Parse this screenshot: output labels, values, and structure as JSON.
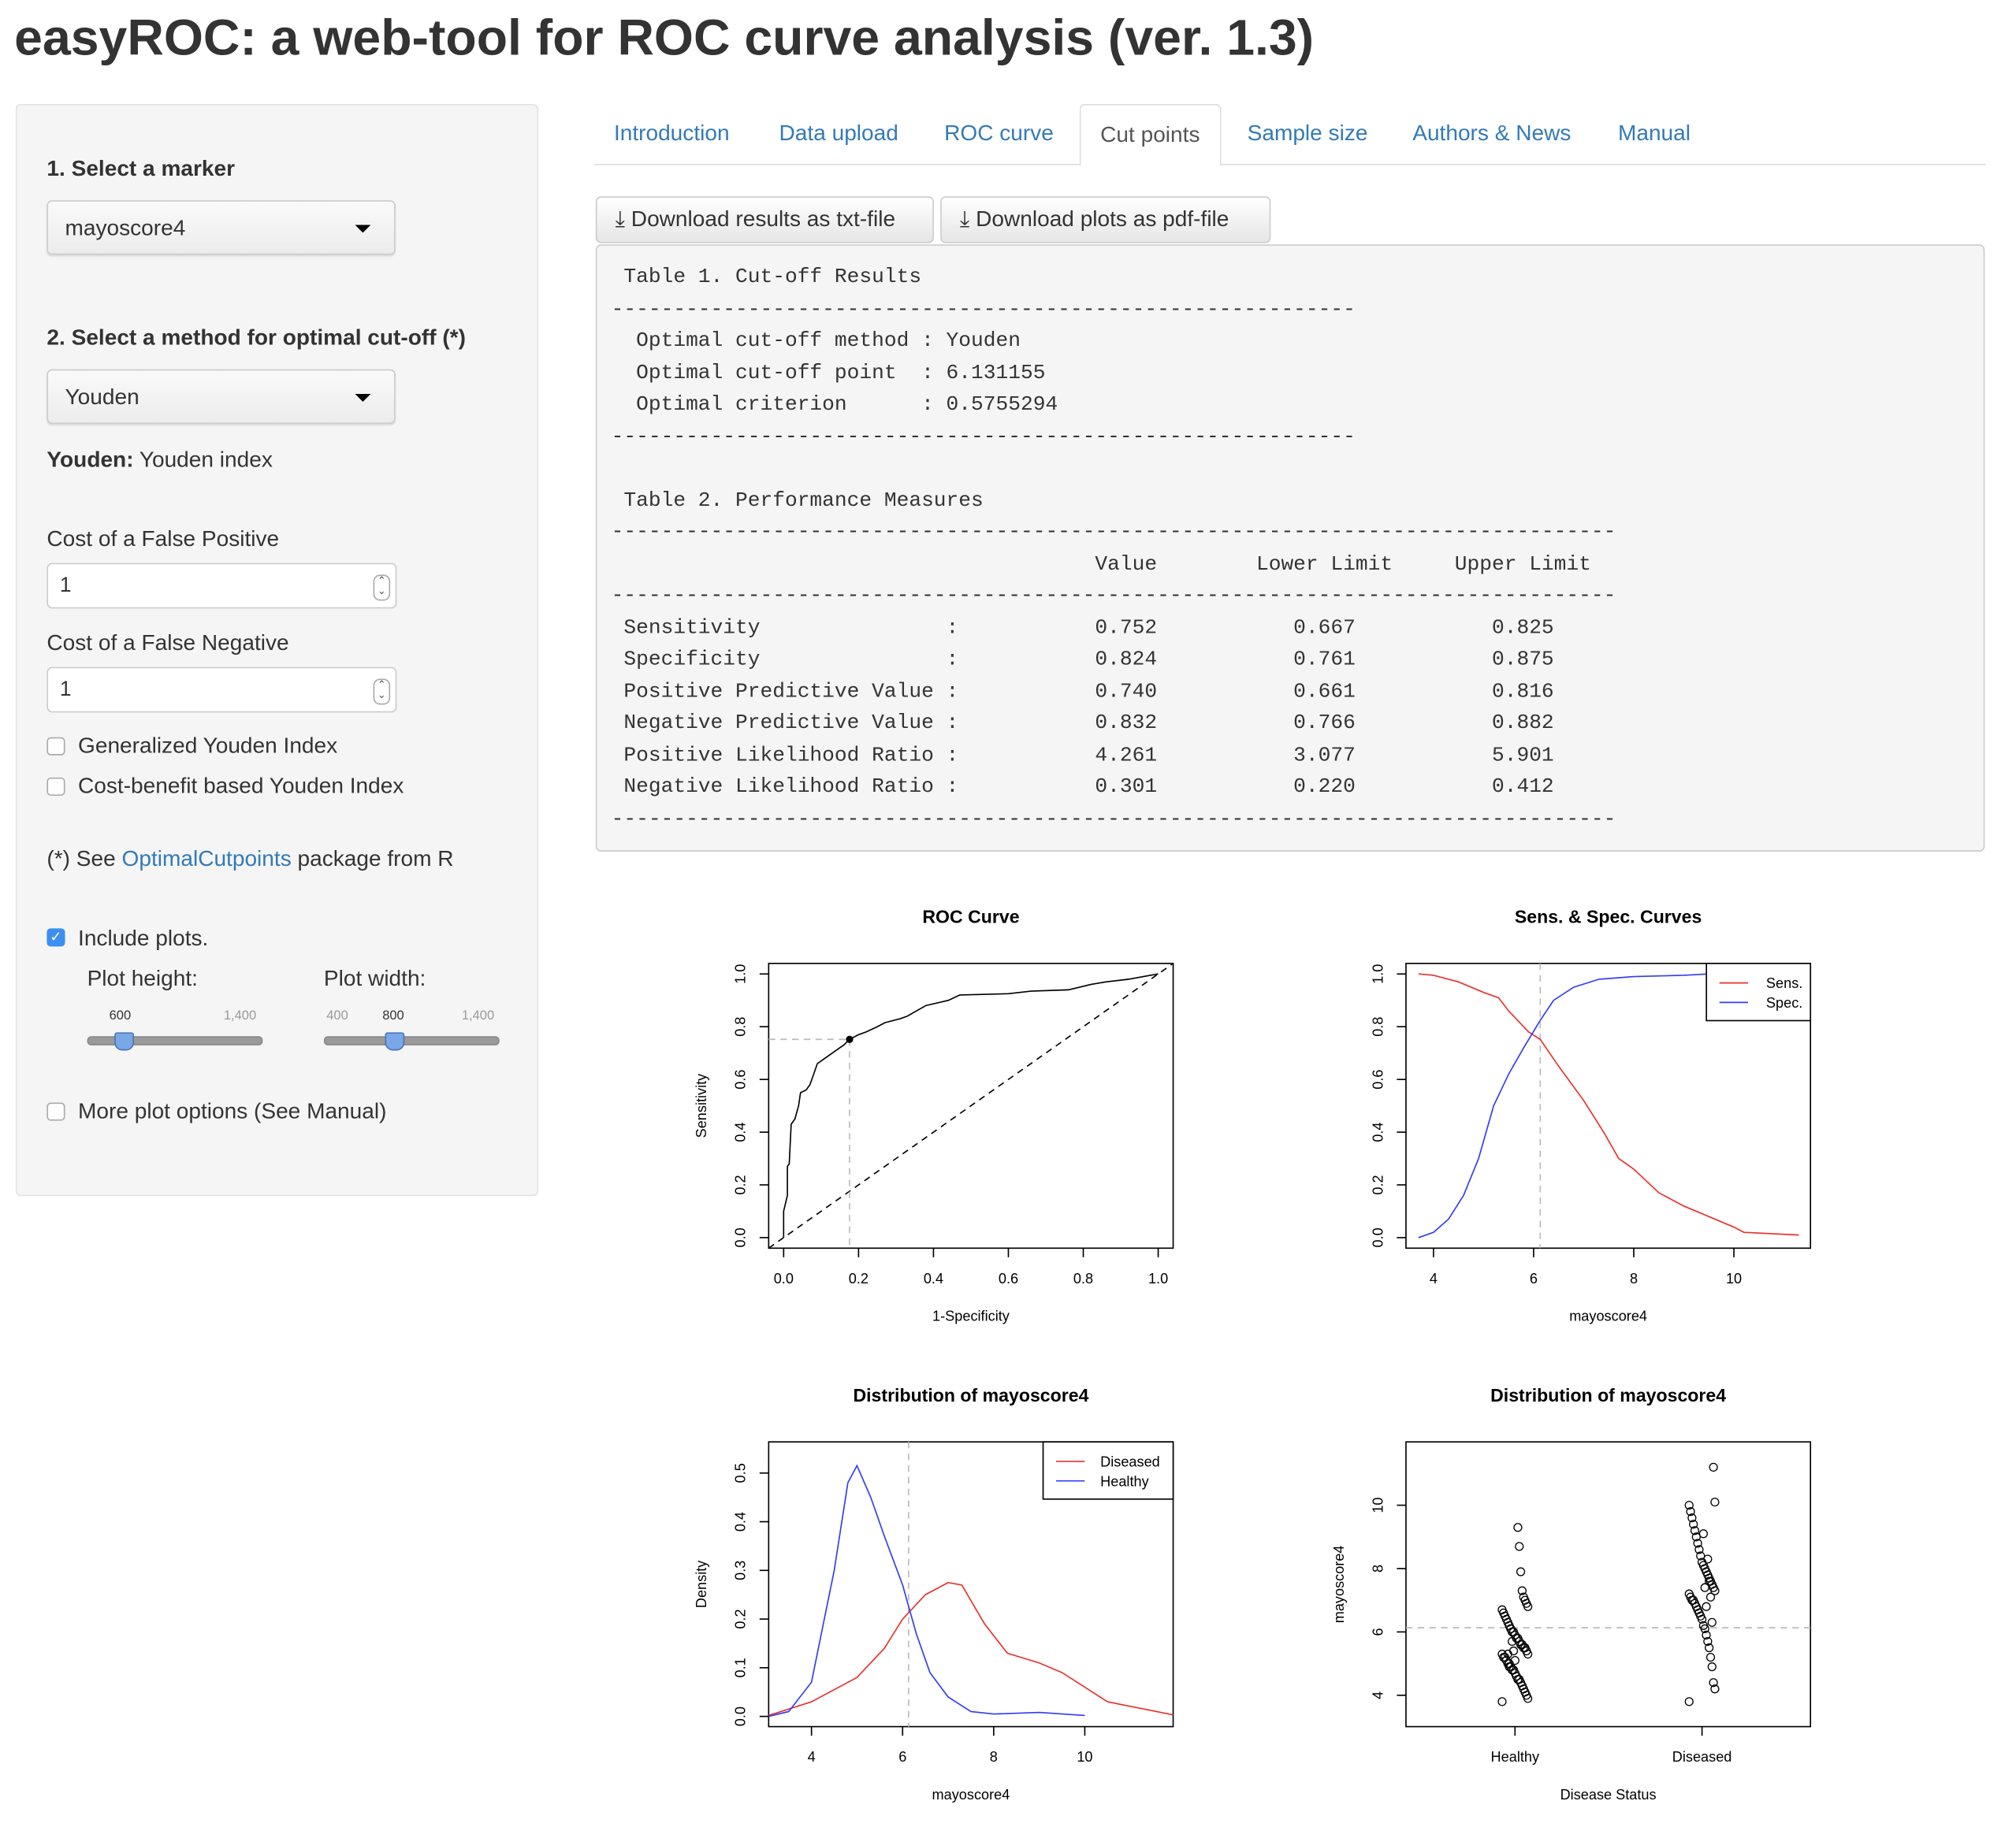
{
  "title": "easyROC: a web-tool for ROC curve analysis (ver. 1.3)",
  "sidebar": {
    "marker_label": "1. Select a marker",
    "marker_value": "mayoscore4",
    "method_label": "2. Select a method for optimal cut-off (*)",
    "method_value": "Youden",
    "method_desc_bold": "Youden:",
    "method_desc": " Youden index",
    "cost_fp_label": "Cost of a False Positive",
    "cost_fp_value": "1",
    "cost_fn_label": "Cost of a False Negative",
    "cost_fn_value": "1",
    "gen_youden": "Generalized Youden Index",
    "cost_youden": "Cost-benefit based Youden Index",
    "note_prefix": "(*) See ",
    "note_link": "OptimalCutpoints",
    "note_suffix": " package from R",
    "include_plots": "Include plots.",
    "plot_height_label": "Plot height:",
    "plot_width_label": "Plot width:",
    "height_value": "600",
    "height_max": "1,400",
    "width_min": "400",
    "width_value": "800",
    "width_max": "1,400",
    "more_options": "More plot options (See Manual)"
  },
  "tabs": [
    "Introduction",
    "Data upload",
    "ROC curve",
    "Cut points",
    "Sample size",
    "Authors & News",
    "Manual"
  ],
  "active_tab": "Cut points",
  "buttons": {
    "txt": "Download results as txt-file",
    "pdf": "Download plots as pdf-file"
  },
  "results": [
    " Table 1. Cut-off Results",
    "------------------------------------------------------------",
    "  Optimal cut-off method : Youden",
    "  Optimal cut-off point  : 6.131155",
    "  Optimal criterion      : 0.5755294",
    "------------------------------------------------------------",
    "",
    " Table 2. Performance Measures",
    "---------------------------------------------------------------------------------",
    "                                       Value        Lower Limit     Upper Limit",
    "---------------------------------------------------------------------------------",
    " Sensitivity               :           0.752           0.667           0.825",
    " Specificity               :           0.824           0.761           0.875",
    " Positive Predictive Value :           0.740           0.661           0.816",
    " Negative Predictive Value :           0.832           0.766           0.882",
    " Positive Likelihood Ratio :           4.261           3.077           5.901",
    " Negative Likelihood Ratio :           0.301           0.220           0.412",
    "---------------------------------------------------------------------------------"
  ],
  "chart_data": [
    {
      "type": "line",
      "title": "ROC Curve",
      "xlabel": "1-Specificity",
      "ylabel": "Sensitivity",
      "xlim": [
        -0.04,
        1.04
      ],
      "ylim": [
        -0.04,
        1.04
      ],
      "xticks": [
        "0.0",
        "0.2",
        "0.4",
        "0.6",
        "0.8",
        "1.0"
      ],
      "yticks": [
        "0.0",
        "0.2",
        "0.4",
        "0.6",
        "0.8",
        "1.0"
      ],
      "cutpoint": {
        "x": 0.176,
        "y": 0.752
      },
      "series": [
        {
          "name": "ROC",
          "color": "#000000",
          "x": [
            0,
            0,
            0.01,
            0.01,
            0.015,
            0.02,
            0.03,
            0.04,
            0.045,
            0.06,
            0.07,
            0.08,
            0.09,
            0.11,
            0.13,
            0.15,
            0.16,
            0.176,
            0.2,
            0.22,
            0.25,
            0.27,
            0.31,
            0.33,
            0.38,
            0.44,
            0.47,
            0.6,
            0.66,
            0.76,
            0.79,
            0.82,
            0.86,
            0.92,
            0.96,
            1
          ],
          "y": [
            0,
            0.1,
            0.16,
            0.27,
            0.28,
            0.43,
            0.45,
            0.5,
            0.55,
            0.56,
            0.58,
            0.62,
            0.66,
            0.68,
            0.7,
            0.72,
            0.73,
            0.752,
            0.77,
            0.78,
            0.8,
            0.815,
            0.83,
            0.84,
            0.88,
            0.9,
            0.92,
            0.925,
            0.935,
            0.94,
            0.95,
            0.96,
            0.97,
            0.98,
            0.99,
            1
          ]
        }
      ]
    },
    {
      "type": "line",
      "title": "Sens. & Spec. Curves",
      "xlabel": "mayoscore4",
      "ylabel": "",
      "xlim": [
        3.45,
        11.53
      ],
      "ylim": [
        -0.04,
        1.04
      ],
      "xticks": [
        "4",
        "6",
        "8",
        "10"
      ],
      "yticks": [
        "0.0",
        "0.2",
        "0.4",
        "0.6",
        "0.8",
        "1.0"
      ],
      "cutoff": 6.131155,
      "legend": "top-right",
      "series": [
        {
          "name": "Sens.",
          "color": "#e8322b",
          "x": [
            3.7,
            4,
            4.5,
            5,
            5.3,
            5.5,
            5.9,
            6.13,
            6.5,
            7,
            7.4,
            7.7,
            8,
            8.5,
            9,
            9.5,
            10,
            10.2,
            11.3
          ],
          "y": [
            1,
            0.995,
            0.97,
            0.93,
            0.91,
            0.86,
            0.78,
            0.752,
            0.65,
            0.52,
            0.4,
            0.3,
            0.26,
            0.17,
            0.12,
            0.08,
            0.04,
            0.02,
            0.01
          ]
        },
        {
          "name": "Spec.",
          "color": "#2f3cf5",
          "x": [
            3.7,
            4,
            4.3,
            4.6,
            4.9,
            5.2,
            5.5,
            5.8,
            6.13,
            6.4,
            6.8,
            7.3,
            8,
            9,
            9.5,
            11.3
          ],
          "y": [
            0,
            0.02,
            0.07,
            0.16,
            0.3,
            0.5,
            0.62,
            0.72,
            0.824,
            0.9,
            0.95,
            0.98,
            0.99,
            0.995,
            1,
            1
          ]
        }
      ]
    },
    {
      "type": "line",
      "title": "Distribution of mayoscore4",
      "xlabel": "mayoscore4",
      "ylabel": "Density",
      "xlim": [
        3.06,
        11.94
      ],
      "ylim": [
        -0.021,
        0.564
      ],
      "xticks": [
        "4",
        "6",
        "8",
        "10"
      ],
      "yticks": [
        "0.0",
        "0.1",
        "0.2",
        "0.3",
        "0.4",
        "0.5"
      ],
      "cutoff": 6.131155,
      "legend": "top-right",
      "series": [
        {
          "name": "Diseased",
          "color": "#e8322b",
          "x": [
            3.06,
            4,
            5,
            5.6,
            6,
            6.5,
            7,
            7.3,
            7.8,
            8.3,
            9,
            9.5,
            10,
            10.5,
            11.94
          ],
          "y": [
            0.002,
            0.03,
            0.08,
            0.14,
            0.2,
            0.25,
            0.275,
            0.27,
            0.19,
            0.13,
            0.11,
            0.09,
            0.06,
            0.03,
            0.003
          ]
        },
        {
          "name": "Healthy",
          "color": "#2f3cf5",
          "x": [
            3.06,
            3.5,
            4,
            4.5,
            4.8,
            5,
            5.3,
            5.6,
            6,
            6.3,
            6.6,
            7,
            7.5,
            8,
            9,
            10
          ],
          "y": [
            0,
            0.01,
            0.07,
            0.3,
            0.48,
            0.515,
            0.45,
            0.37,
            0.27,
            0.17,
            0.09,
            0.04,
            0.01,
            0.005,
            0.008,
            0.002
          ]
        }
      ]
    },
    {
      "type": "scatter",
      "title": "Distribution of mayoscore4",
      "xlabel": "Disease Status",
      "ylabel": "mayoscore4",
      "ylim": [
        3.01,
        12.0
      ],
      "categories": [
        "Healthy",
        "Diseased"
      ],
      "yticks": [
        "4",
        "6",
        "8",
        "10"
      ],
      "cutoff": 6.131155,
      "groups": [
        [
          3.8,
          3.9,
          4.0,
          4.1,
          4.2,
          4.3,
          4.4,
          4.5,
          4.5,
          4.6,
          4.7,
          4.8,
          4.8,
          4.9,
          5.0,
          5.0,
          5.1,
          5.2,
          5.2,
          5.3,
          5.3,
          5.4,
          5.5,
          5.5,
          5.6,
          5.6,
          5.7,
          5.8,
          5.8,
          5.9,
          6.0,
          6.0,
          6.1,
          6.2,
          6.3,
          6.4,
          6.5,
          6.6,
          6.7,
          6.8,
          6.9,
          7.0,
          7.1,
          7.3,
          7.9,
          8.7,
          9.3,
          4.6,
          5.1,
          5.4,
          5.7,
          6.1,
          4.9,
          5.3
        ],
        [
          3.8,
          4.2,
          4.4,
          4.9,
          5.2,
          5.5,
          5.7,
          5.9,
          6.1,
          6.2,
          6.4,
          6.5,
          6.6,
          6.7,
          6.8,
          6.9,
          7.0,
          7.0,
          7.1,
          7.2,
          7.3,
          7.4,
          7.5,
          7.6,
          7.7,
          7.8,
          7.9,
          8.0,
          8.1,
          8.2,
          8.4,
          8.6,
          8.8,
          9.0,
          9.2,
          9.4,
          9.6,
          9.8,
          10.0,
          10.1,
          11.2,
          6.3,
          7.1,
          7.6,
          8.3,
          6.8,
          7.4,
          9.1
        ]
      ]
    }
  ]
}
